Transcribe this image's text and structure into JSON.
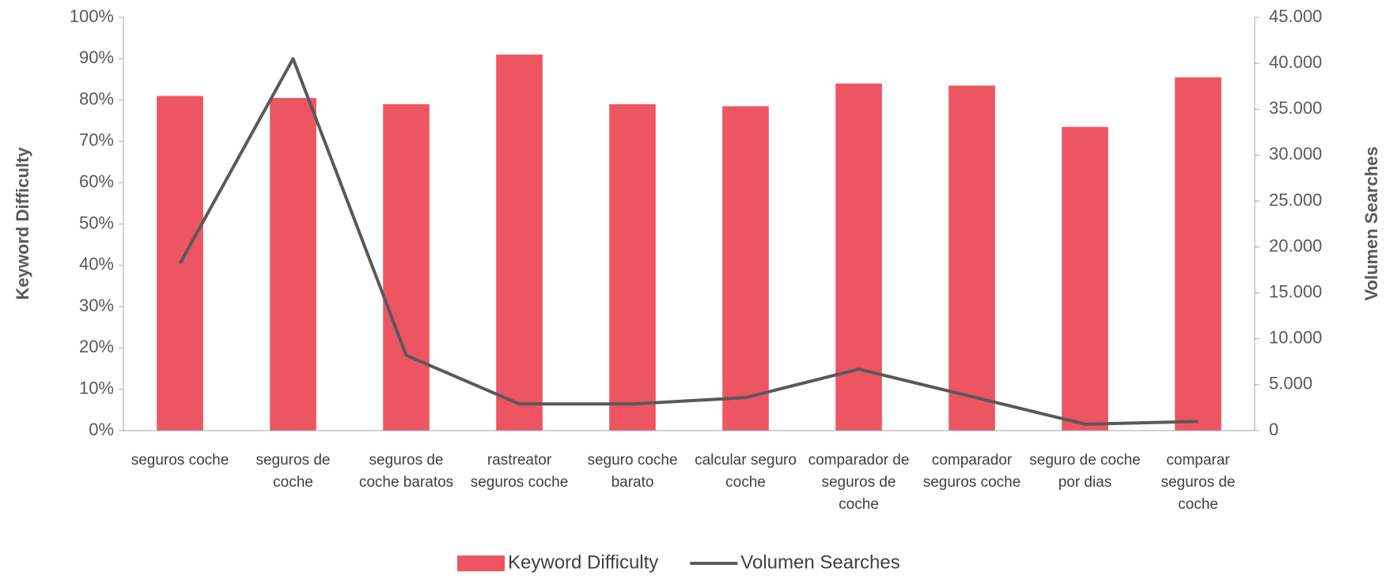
{
  "chart_data": {
    "type": "bar-line",
    "y_label": "Keyword Difficulty",
    "y2_label": "Volumen Searches",
    "categories": [
      "seguros coche",
      "seguros de coche",
      "seguros de coche baratos",
      "rastreator seguros coche",
      "seguro coche barato",
      "calcular seguro coche",
      "comparador de seguros de coche",
      "comparador seguros coche",
      "seguro de coche por dias",
      "comparar seguros de coche"
    ],
    "series": [
      {
        "name": "Keyword Difficulty",
        "type": "bar",
        "color": "#ee5563",
        "values": [
          81,
          80.5,
          79,
          91,
          79,
          78.5,
          84,
          83.5,
          73.5,
          85.5
        ]
      },
      {
        "name": "Volumen Searches",
        "type": "line",
        "axis": "y2",
        "color": "#595959",
        "values": [
          18200,
          40500,
          8200,
          2900,
          2900,
          3600,
          6700,
          3700,
          700,
          1000
        ]
      }
    ],
    "ylim": [
      0,
      100
    ],
    "yticks": [
      {
        "value": 0,
        "label": "0%"
      },
      {
        "value": 10,
        "label": "10%"
      },
      {
        "value": 20,
        "label": "20%"
      },
      {
        "value": 30,
        "label": "30%"
      },
      {
        "value": 40,
        "label": "40%"
      },
      {
        "value": 50,
        "label": "50%"
      },
      {
        "value": 60,
        "label": "60%"
      },
      {
        "value": 70,
        "label": "70%"
      },
      {
        "value": 80,
        "label": "80%"
      },
      {
        "value": 90,
        "label": "90%"
      },
      {
        "value": 100,
        "label": "100%"
      }
    ],
    "y2lim": [
      0,
      45000
    ],
    "y2ticks": [
      0,
      {
        "value": 5000,
        "label": "5.000"
      },
      {
        "value": 10000,
        "label": "10.000"
      },
      {
        "value": 15000,
        "label": "15.000"
      },
      {
        "value": 20000,
        "label": "20.000"
      },
      {
        "value": 25000,
        "label": "25.000"
      },
      {
        "value": 30000,
        "label": "30.000"
      },
      {
        "value": 35000,
        "label": "35.000"
      },
      {
        "value": 40000,
        "label": "40.000"
      },
      {
        "value": 45000,
        "label": "45.000"
      }
    ],
    "legend": "bottom"
  }
}
